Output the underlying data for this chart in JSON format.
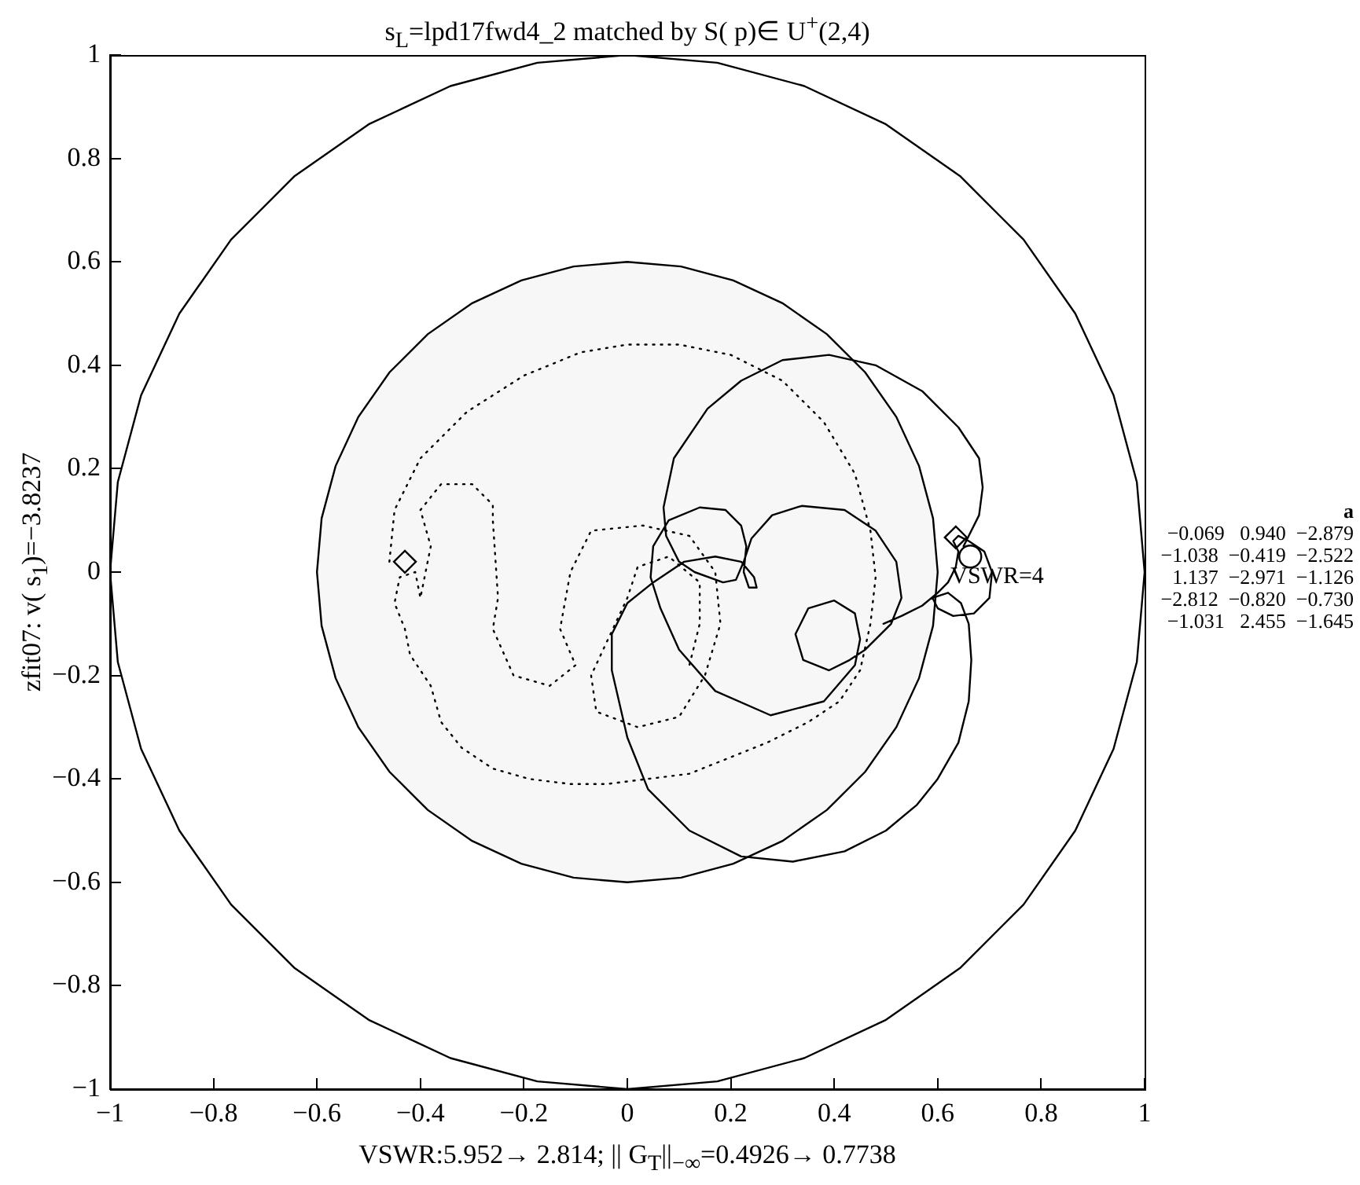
{
  "chart_data": {
    "type": "line",
    "title": "s$_{L}$=lpd17fwd4_2 matched by  S( p)∈  U$^{+}$(2,4)",
    "xlabel": "VSWR:5.952→ 2.814; || G$_{T}$||$_{−∞}$=0.4926→ 0.7738",
    "ylabel": "zfit07: v( s$_{1}$)=−3.8237",
    "xlim": [
      -1,
      1
    ],
    "ylim": [
      -1,
      1
    ],
    "xticks": [
      {
        "value": -1,
        "label": "−1"
      },
      {
        "value": -0.8,
        "label": "−0.8"
      },
      {
        "value": -0.6,
        "label": "−0.6"
      },
      {
        "value": -0.4,
        "label": "−0.4"
      },
      {
        "value": -0.2,
        "label": "−0.2"
      },
      0,
      0.2,
      0.4,
      0.6,
      0.8,
      1
    ],
    "yticks": [
      {
        "value": -1,
        "label": "−1"
      },
      {
        "value": -0.8,
        "label": "−0.8"
      },
      {
        "value": -0.6,
        "label": "−0.6"
      },
      {
        "value": -0.4,
        "label": "−0.4"
      },
      {
        "value": -0.2,
        "label": "−0.2"
      },
      0,
      0.2,
      0.4,
      0.6,
      0.8,
      1
    ],
    "series": [
      {
        "color": "#000000",
        "x": [
          1,
          0.985,
          0.94,
          0.866,
          0.766,
          0.643,
          0.5,
          0.342,
          0.174,
          0,
          -0.174,
          -0.342,
          -0.5,
          -0.643,
          -0.766,
          -0.866,
          -0.94,
          -0.985,
          -1,
          -0.985,
          -0.94,
          -0.866,
          -0.766,
          -0.643,
          -0.5,
          -0.342,
          -0.174,
          0,
          0.174,
          0.342,
          0.5,
          0.643,
          0.766,
          0.866,
          0.94,
          0.985,
          1,
          0.985
        ],
        "values": [
          0,
          0.174,
          0.342,
          0.5,
          0.643,
          0.766,
          0.866,
          0.94,
          0.985,
          1,
          0.985,
          0.94,
          0.866,
          0.766,
          0.643,
          0.5,
          0.342,
          0.174,
          0,
          -0.174,
          -0.342,
          -0.5,
          -0.643,
          -0.766,
          -0.866,
          -0.94,
          -0.985,
          -1,
          -0.985,
          -0.94,
          -0.866,
          -0.766,
          -0.643,
          -0.5,
          -0.342,
          -0.174,
          0,
          0.174
        ]
      },
      {
        "color": "#000000",
        "line_style": "dotted",
        "x": [
          -0.46,
          -0.45,
          -0.4,
          -0.31,
          -0.2,
          -0.09,
          0,
          0.1,
          0.2,
          0.3,
          0.38,
          0.44,
          0.47,
          0.48,
          0.47,
          0.45,
          0.41,
          0.35,
          0.27,
          0.195,
          0.12,
          0.04,
          -0.04,
          -0.11,
          -0.19,
          -0.26,
          -0.32,
          -0.36,
          -0.38,
          -0.42,
          -0.43,
          -0.45,
          -0.44,
          -0.41,
          -0.4,
          -0.38,
          -0.4,
          -0.36,
          -0.3,
          -0.26,
          -0.26,
          -0.25,
          -0.26,
          -0.22,
          -0.15,
          -0.1,
          -0.13,
          -0.11,
          -0.07,
          0.03,
          0.12,
          0.17,
          0.18,
          0.15,
          0.1,
          0.02,
          -0.06,
          -0.07,
          0,
          0.02,
          0.08,
          0.14,
          0.14,
          0.12
        ],
        "values": [
          0.02,
          0.12,
          0.22,
          0.31,
          0.38,
          0.425,
          0.44,
          0.44,
          0.42,
          0.37,
          0.29,
          0.19,
          0.08,
          -0.01,
          -0.1,
          -0.19,
          -0.25,
          -0.29,
          -0.33,
          -0.36,
          -0.39,
          -0.4,
          -0.41,
          -0.41,
          -0.4,
          -0.38,
          -0.34,
          -0.29,
          -0.22,
          -0.16,
          -0.11,
          -0.06,
          -0.01,
          0,
          -0.05,
          0.05,
          0.12,
          0.17,
          0.17,
          0.13,
          0.1,
          -0.05,
          -0.11,
          -0.2,
          -0.22,
          -0.18,
          -0.11,
          0,
          0.08,
          0.09,
          0.07,
          0,
          -0.1,
          -0.2,
          -0.28,
          -0.3,
          -0.27,
          -0.2,
          -0.05,
          0.01,
          0.03,
          -0.02,
          -0.1,
          -0.18
        ]
      },
      {
        "color": "#000000",
        "line_style": "solid",
        "x": [
          0.495,
          0.53,
          0.57,
          0.6,
          0.62,
          0.635,
          0.64,
          0.63,
          0.64,
          0.66,
          0.69,
          0.705,
          0.7,
          0.67,
          0.63,
          0.6,
          0.59,
          0.62,
          0.645,
          0.66,
          0.665,
          0.66,
          0.64,
          0.6,
          0.56,
          0.5,
          0.42,
          0.32,
          0.22,
          0.12,
          0.04,
          0,
          -0.03,
          -0.03,
          0,
          0.05,
          0.11,
          0.17,
          0.22,
          0.245,
          0.25,
          0.235,
          0.225,
          0.23,
          0.22,
          0.19,
          0.14,
          0.08,
          0.05,
          0.045,
          0.064,
          0.1,
          0.17,
          0.277,
          0.38,
          0.44,
          0.45,
          0.44,
          0.4,
          0.35,
          0.325,
          0.34,
          0.39,
          0.43,
          0.46,
          0.51,
          0.53,
          0.52,
          0.48,
          0.42,
          0.337,
          0.28,
          0.24,
          0.225,
          0.21,
          0.185,
          0.13,
          0.1,
          0.075,
          0.07,
          0.09,
          0.155,
          0.22,
          0.3,
          0.39,
          0.48,
          0.57,
          0.64,
          0.68,
          0.687,
          0.68,
          0.66,
          0.65
        ],
        "values": [
          -0.1,
          -0.085,
          -0.065,
          -0.04,
          -0.02,
          0.01,
          0.04,
          0.06,
          0.07,
          0.06,
          0.04,
          0,
          -0.05,
          -0.08,
          -0.085,
          -0.07,
          -0.05,
          -0.04,
          -0.06,
          -0.1,
          -0.17,
          -0.25,
          -0.33,
          -0.4,
          -0.45,
          -0.5,
          -0.54,
          -0.56,
          -0.55,
          -0.5,
          -0.42,
          -0.32,
          -0.19,
          -0.12,
          -0.06,
          -0.02,
          0.02,
          0.03,
          0.02,
          -0.01,
          -0.03,
          -0.03,
          0,
          0.05,
          0.09,
          0.12,
          0.125,
          0.1,
          0.05,
          -0.01,
          -0.07,
          -0.15,
          -0.23,
          -0.277,
          -0.25,
          -0.18,
          -0.13,
          -0.08,
          -0.055,
          -0.07,
          -0.12,
          -0.17,
          -0.19,
          -0.17,
          -0.15,
          -0.1,
          -0.05,
          0.02,
          0.08,
          0.12,
          0.128,
          0.11,
          0.065,
          0.02,
          -0.015,
          -0.02,
          0,
          0.02,
          0.07,
          0.125,
          0.22,
          0.316,
          0.37,
          0.41,
          0.42,
          0.4,
          0.35,
          0.28,
          0.22,
          0.164,
          0.11,
          0.07,
          0.05
        ]
      },
      {
        "type": "scatter",
        "color": "#000000",
        "marker": "diamond",
        "x": [
          -0.43,
          0.635
        ],
        "values": [
          0.02,
          0.067
        ]
      },
      {
        "type": "scatter",
        "color": "#000000",
        "marker": "circle",
        "x": [
          0.663
        ],
        "values": [
          0.03
        ]
      },
      {
        "type": "area",
        "color": "#f7f7f7",
        "x": [
          0.6,
          0.591,
          0.564,
          0.52,
          0.46,
          0.386,
          0.3,
          0.205,
          0.104,
          0,
          -0.104,
          -0.205,
          -0.3,
          -0.386,
          -0.46,
          -0.52,
          -0.564,
          -0.591,
          -0.6,
          -0.591,
          -0.564,
          -0.52,
          -0.46,
          -0.386,
          -0.3,
          -0.205,
          -0.104,
          0,
          0.104,
          0.205,
          0.3,
          0.386,
          0.46,
          0.52,
          0.564,
          0.591,
          0.6
        ],
        "values": [
          0,
          0.104,
          0.205,
          0.3,
          0.386,
          0.46,
          0.52,
          0.564,
          0.591,
          0.6,
          0.591,
          0.564,
          0.52,
          0.46,
          0.386,
          0.3,
          0.205,
          0.104,
          0,
          -0.104,
          -0.205,
          -0.3,
          -0.386,
          -0.46,
          -0.52,
          -0.564,
          -0.591,
          -0.6,
          -0.591,
          -0.564,
          -0.52,
          -0.46,
          -0.386,
          -0.3,
          -0.205,
          -0.104,
          0
        ]
      }
    ],
    "annotations": [
      {
        "text": "VSWR=4",
        "x": 0.625,
        "y": -0.01
      },
      "a",
      "−0.069   0.940  −2.879",
      "−1.038  −0.419  −2.522",
      "1.137  −2.971  −1.126",
      "−2.812  −0.820  −0.730",
      "−1.031   2.455  −1.645"
    ],
    "grid": false,
    "legend": false
  }
}
